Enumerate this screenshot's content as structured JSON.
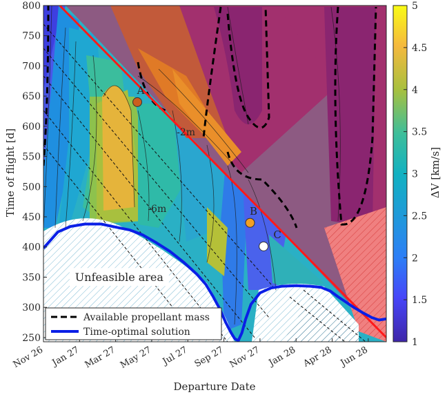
{
  "chart_data": {
    "type": "heatmap",
    "title": "",
    "xlabel": "Departure Date",
    "ylabel": "Time of flight [d]",
    "colorbar_label": "ΔV [km/s]",
    "xlim": [
      0,
      19
    ],
    "ylim": [
      243,
      800
    ],
    "x_ticks": [
      {
        "value": 0,
        "label": "Nov 26"
      },
      {
        "value": 2,
        "label": "Jan 27"
      },
      {
        "value": 4,
        "label": "Mar 27"
      },
      {
        "value": 6,
        "label": "May 27"
      },
      {
        "value": 8,
        "label": "Jul 27"
      },
      {
        "value": 10,
        "label": "Sep 27"
      },
      {
        "value": 12,
        "label": "Nov 27"
      },
      {
        "value": 14,
        "label": "Jan 28"
      },
      {
        "value": 16,
        "label": "Apr 28"
      },
      {
        "value": 18,
        "label": "Jun 28"
      }
    ],
    "y_ticks": [
      250,
      300,
      350,
      400,
      450,
      500,
      550,
      600,
      650,
      700,
      750,
      800
    ],
    "colorbar": {
      "min": 1,
      "max": 5,
      "ticks": [
        "1",
        "1.5",
        "2",
        "2.5",
        "3",
        "3.5",
        "4",
        "4.5",
        "5"
      ]
    },
    "red_line": {
      "x": [
        0.9,
        19
      ],
      "y": [
        800,
        250
      ]
    },
    "time_optimal_solution": {
      "x": [
        0,
        0.8,
        1.5,
        2.3,
        3.2,
        4.0,
        4.8,
        5.5,
        6.2,
        7.0,
        7.8,
        8.5,
        9.0,
        9.4,
        9.8,
        10.1,
        10.4,
        10.6,
        10.8,
        11.0,
        11.2,
        11.5,
        12.0,
        12.6,
        13.2,
        14.0,
        14.8,
        15.4,
        15.9,
        16.3,
        16.7,
        17.2,
        17.7,
        18.2,
        18.6,
        19.0
      ],
      "y": [
        398,
        425,
        434,
        438,
        438,
        433,
        428,
        420,
        408,
        393,
        374,
        355,
        338,
        318,
        296,
        275,
        258,
        248,
        245,
        258,
        280,
        305,
        324,
        332,
        335,
        336,
        335,
        333,
        327,
        318,
        310,
        300,
        291,
        283,
        279,
        281
      ]
    },
    "colored_points": [
      {
        "label": "A",
        "x": 5.2,
        "y": 640,
        "color": "#cc5e1e"
      },
      {
        "label": "B",
        "x": 11.45,
        "y": 440,
        "color": "#f2a024"
      },
      {
        "label": "C",
        "x": 12.2,
        "y": 401,
        "color": "#ffffff"
      }
    ],
    "annotations": [
      {
        "text": "-2m",
        "x": 7.9,
        "y": 585
      },
      {
        "text": "-6m",
        "x": 6.3,
        "y": 458
      },
      {
        "text": "Unfeasible area",
        "x": 4.2,
        "y": 348
      }
    ],
    "legend": {
      "position": "bottom-left",
      "entries": [
        {
          "label": "Available propellant mass",
          "style": "dashed"
        },
        {
          "label": "Time-optimal solution",
          "style": "solid-blue"
        }
      ]
    }
  }
}
